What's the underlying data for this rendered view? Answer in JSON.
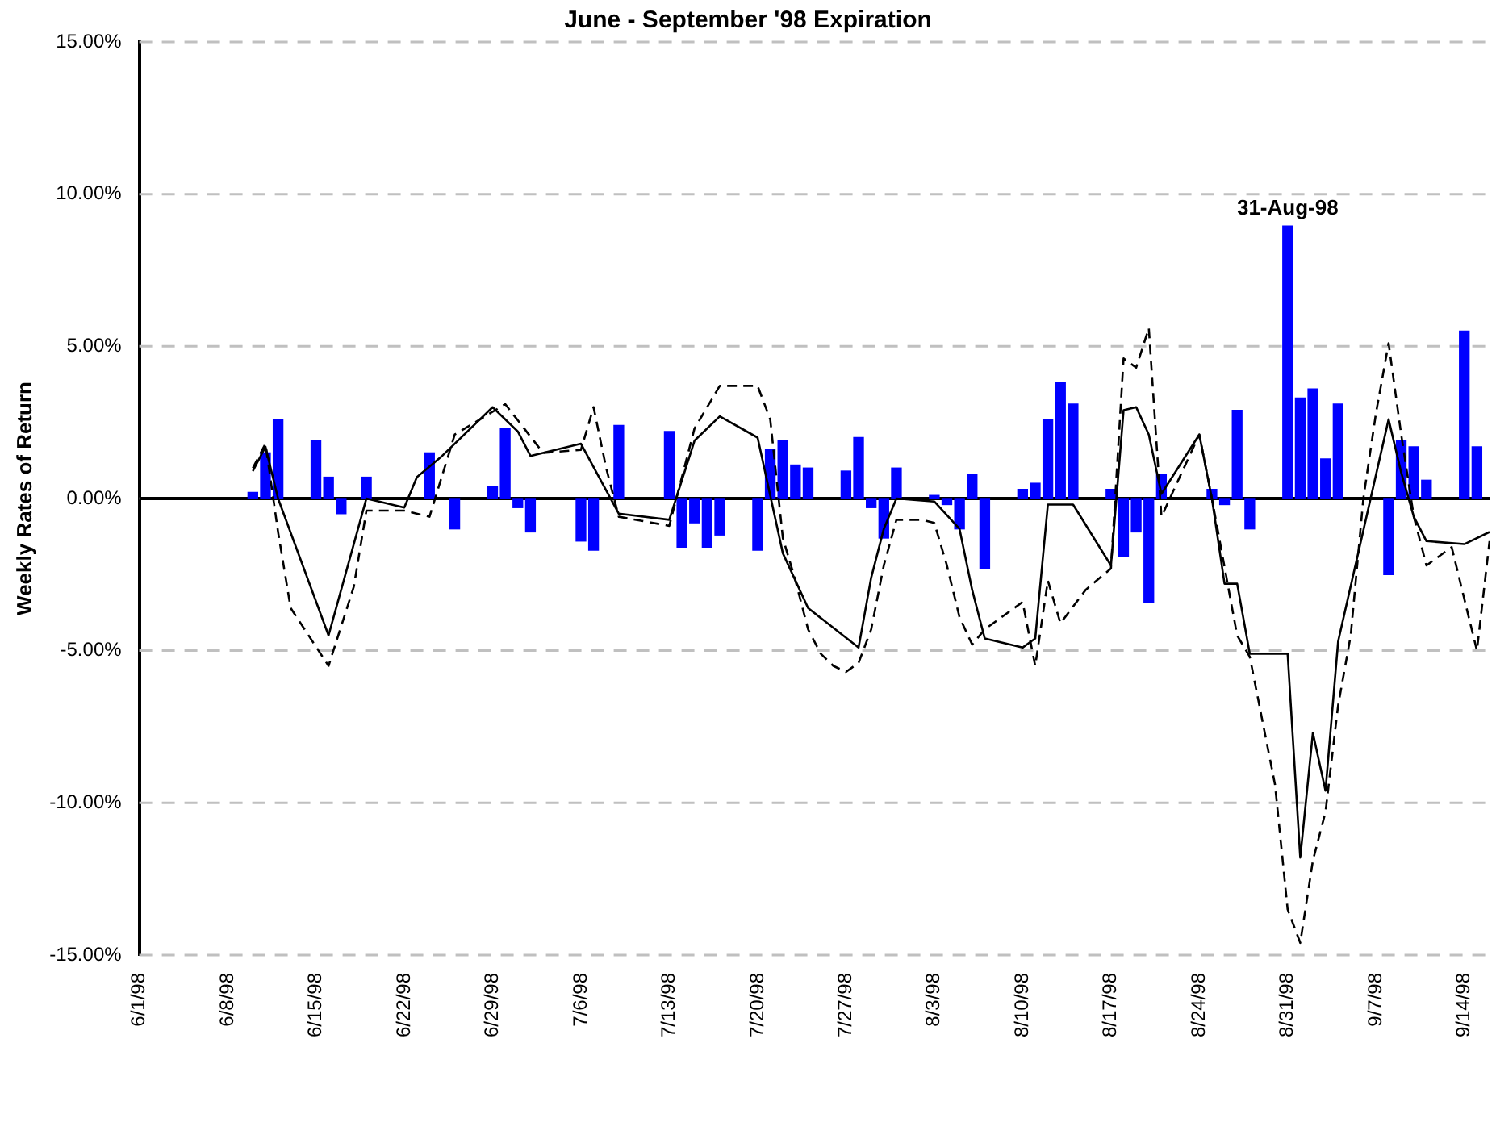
{
  "chart_data": {
    "type": "bar",
    "title": "June - September '98 Expiration",
    "ylabel": "Weekly Rates of Return",
    "annotations": [
      {
        "text": "31-Aug-98",
        "x": "1998-08-31",
        "y": 8.95
      }
    ],
    "xlim": [
      "1998-06-01",
      "1998-09-16"
    ],
    "xticks": [
      {
        "value": "1998-06-01",
        "label": "6/1/98"
      },
      {
        "value": "1998-06-08",
        "label": "6/8/98"
      },
      {
        "value": "1998-06-15",
        "label": "6/15/98"
      },
      {
        "value": "1998-06-22",
        "label": "6/22/98"
      },
      {
        "value": "1998-06-29",
        "label": "6/29/98"
      },
      {
        "value": "1998-07-06",
        "label": "7/6/98"
      },
      {
        "value": "1998-07-13",
        "label": "7/13/98"
      },
      {
        "value": "1998-07-20",
        "label": "7/20/98"
      },
      {
        "value": "1998-07-27",
        "label": "7/27/98"
      },
      {
        "value": "1998-08-03",
        "label": "8/3/98"
      },
      {
        "value": "1998-08-10",
        "label": "8/10/98"
      },
      {
        "value": "1998-08-17",
        "label": "8/17/98"
      },
      {
        "value": "1998-08-24",
        "label": "8/24/98"
      },
      {
        "value": "1998-08-31",
        "label": "8/31/98"
      },
      {
        "value": "1998-09-07",
        "label": "9/7/98"
      },
      {
        "value": "1998-09-14",
        "label": "9/14/98"
      }
    ],
    "ylim": [
      -15,
      15
    ],
    "yticks": [
      {
        "value": -15,
        "label": "-15.00%"
      },
      {
        "value": -10,
        "label": "-10.00%"
      },
      {
        "value": -5,
        "label": "-5.00%"
      },
      {
        "value": 0,
        "label": "0.00%"
      },
      {
        "value": 5,
        "label": "5.00%"
      },
      {
        "value": 10,
        "label": "10.00%"
      },
      {
        "value": 15,
        "label": "15.00%"
      }
    ],
    "grid": "y",
    "marker": "none",
    "series": [
      {
        "color": "#0000ff",
        "x": [
          "1998-06-10",
          "1998-06-11",
          "1998-06-12",
          "1998-06-15",
          "1998-06-16",
          "1998-06-17",
          "1998-06-19",
          "1998-06-24",
          "1998-06-26",
          "1998-06-29",
          "1998-06-30",
          "1998-07-01",
          "1998-07-02",
          "1998-07-06",
          "1998-07-07",
          "1998-07-09",
          "1998-07-13",
          "1998-07-14",
          "1998-07-15",
          "1998-07-16",
          "1998-07-17",
          "1998-07-20",
          "1998-07-21",
          "1998-07-22",
          "1998-07-23",
          "1998-07-24",
          "1998-07-27",
          "1998-07-28",
          "1998-07-29",
          "1998-07-30",
          "1998-07-31",
          "1998-08-03",
          "1998-08-04",
          "1998-08-05",
          "1998-08-06",
          "1998-08-07",
          "1998-08-10",
          "1998-08-11",
          "1998-08-12",
          "1998-08-13",
          "1998-08-14",
          "1998-08-17",
          "1998-08-18",
          "1998-08-19",
          "1998-08-20",
          "1998-08-21",
          "1998-08-25",
          "1998-08-26",
          "1998-08-27",
          "1998-08-28",
          "1998-08-31",
          "1998-09-01",
          "1998-09-02",
          "1998-09-03",
          "1998-09-04",
          "1998-09-08",
          "1998-09-09",
          "1998-09-10",
          "1998-09-11",
          "1998-09-14",
          "1998-09-15"
        ],
        "values": [
          0.2,
          1.5,
          2.6,
          1.9,
          0.7,
          -0.5,
          0.7,
          1.5,
          -1.0,
          0.4,
          2.3,
          -0.3,
          -1.1,
          -1.4,
          -1.7,
          2.4,
          2.2,
          -1.6,
          -0.8,
          -1.6,
          -1.2,
          -1.7,
          1.6,
          1.9,
          1.1,
          1.0,
          0.9,
          2.0,
          -0.3,
          -1.3,
          1.0,
          0.1,
          -0.2,
          -1.0,
          0.8,
          -2.3,
          0.3,
          0.5,
          2.6,
          3.8,
          3.1,
          0.3,
          -1.9,
          -1.1,
          -3.4,
          0.8,
          0.3,
          -0.2,
          2.9,
          -1.0,
          8.95,
          3.3,
          3.6,
          1.3,
          3.1,
          -2.5,
          1.9,
          1.7,
          0.6,
          5.5,
          1.7
        ]
      },
      {
        "type": "line",
        "color": "#000000",
        "line_style": "solid",
        "x": [
          "1998-06-10",
          "1998-06-11",
          "1998-06-12",
          "1998-06-16",
          "1998-06-19",
          "1998-06-22",
          "1998-06-23",
          "1998-06-25",
          "1998-06-29",
          "1998-07-01",
          "1998-07-02",
          "1998-07-06",
          "1998-07-09",
          "1998-07-13",
          "1998-07-15",
          "1998-07-17",
          "1998-07-20",
          "1998-07-22",
          "1998-07-24",
          "1998-07-28",
          "1998-07-29",
          "1998-07-30",
          "1998-07-31",
          "1998-08-03",
          "1998-08-05",
          "1998-08-06",
          "1998-08-07",
          "1998-08-10",
          "1998-08-11",
          "1998-08-12",
          "1998-08-14",
          "1998-08-17",
          "1998-08-18",
          "1998-08-19",
          "1998-08-20",
          "1998-08-21",
          "1998-08-24",
          "1998-08-25",
          "1998-08-26",
          "1998-08-27",
          "1998-08-28",
          "1998-08-31",
          "1998-09-01",
          "1998-09-02",
          "1998-09-03",
          "1998-09-04",
          "1998-09-08",
          "1998-09-09",
          "1998-09-10",
          "1998-09-11",
          "1998-09-14",
          "1998-09-16"
        ],
        "values": [
          0.9,
          1.7,
          0,
          -4.5,
          0,
          -0.3,
          0.7,
          1.4,
          3.0,
          2.2,
          1.4,
          1.8,
          -0.5,
          -0.7,
          1.9,
          2.7,
          2.0,
          -1.8,
          -3.6,
          -4.9,
          -2.6,
          -1.0,
          0,
          -0.1,
          -1.0,
          -3.0,
          -4.6,
          -4.9,
          -4.6,
          -0.2,
          -0.2,
          -2.2,
          2.9,
          3.0,
          2.1,
          0.15,
          2.1,
          0,
          -2.8,
          -2.8,
          -5.1,
          -5.1,
          -11.8,
          -7.7,
          -9.6,
          -4.7,
          2.6,
          0.85,
          -0.6,
          -1.4,
          -1.5,
          -1.1
        ]
      },
      {
        "type": "line",
        "color": "#000000",
        "line_style": "dashed",
        "x": [
          "1998-06-10",
          "1998-06-11",
          "1998-06-12",
          "1998-06-13",
          "1998-06-16",
          "1998-06-18",
          "1998-06-19",
          "1998-06-22",
          "1998-06-24",
          "1998-06-26",
          "1998-06-30",
          "1998-07-03",
          "1998-07-06",
          "1998-07-07",
          "1998-07-08",
          "1998-07-09",
          "1998-07-13",
          "1998-07-15",
          "1998-07-17",
          "1998-07-20",
          "1998-07-21",
          "1998-07-22",
          "1998-07-23",
          "1998-07-24",
          "1998-07-25",
          "1998-07-26",
          "1998-07-27",
          "1998-07-28",
          "1998-07-29",
          "1998-07-30",
          "1998-07-31",
          "1998-08-02",
          "1998-08-03",
          "1998-08-04",
          "1998-08-05",
          "1998-08-06",
          "1998-08-07",
          "1998-08-10",
          "1998-08-11",
          "1998-08-12",
          "1998-08-13",
          "1998-08-15",
          "1998-08-17",
          "1998-08-18",
          "1998-08-19",
          "1998-08-20",
          "1998-08-21",
          "1998-08-24",
          "1998-08-25",
          "1998-08-27",
          "1998-08-28",
          "1998-08-30",
          "1998-08-31",
          "1998-09-01",
          "1998-09-02",
          "1998-09-03",
          "1998-09-04",
          "1998-09-05",
          "1998-09-06",
          "1998-09-07",
          "1998-09-08",
          "1998-09-09",
          "1998-09-10",
          "1998-09-11",
          "1998-09-13",
          "1998-09-15",
          "1998-09-16"
        ],
        "values": [
          1.0,
          1.8,
          -1.1,
          -3.6,
          -5.5,
          -2.9,
          -0.4,
          -0.4,
          -0.6,
          2.1,
          3.1,
          1.5,
          1.6,
          3.0,
          1.0,
          -0.6,
          -0.9,
          2.3,
          3.7,
          3.7,
          2.6,
          -1.3,
          -2.7,
          -4.3,
          -5.1,
          -5.5,
          -5.7,
          -5.4,
          -4.3,
          -2.2,
          -0.7,
          -0.7,
          -0.8,
          -2.2,
          -3.9,
          -4.8,
          -4.3,
          -3.4,
          -5.5,
          -2.7,
          -4.1,
          -3.0,
          -2.3,
          4.6,
          4.3,
          5.6,
          -0.6,
          2.1,
          0,
          -4.5,
          -5.2,
          -9.4,
          -13.5,
          -14.6,
          -11.9,
          -10.3,
          -6.8,
          -4.5,
          0,
          2.8,
          5.1,
          2.1,
          -0.6,
          -2.2,
          -1.6,
          -5.0,
          -1.4
        ]
      }
    ]
  }
}
